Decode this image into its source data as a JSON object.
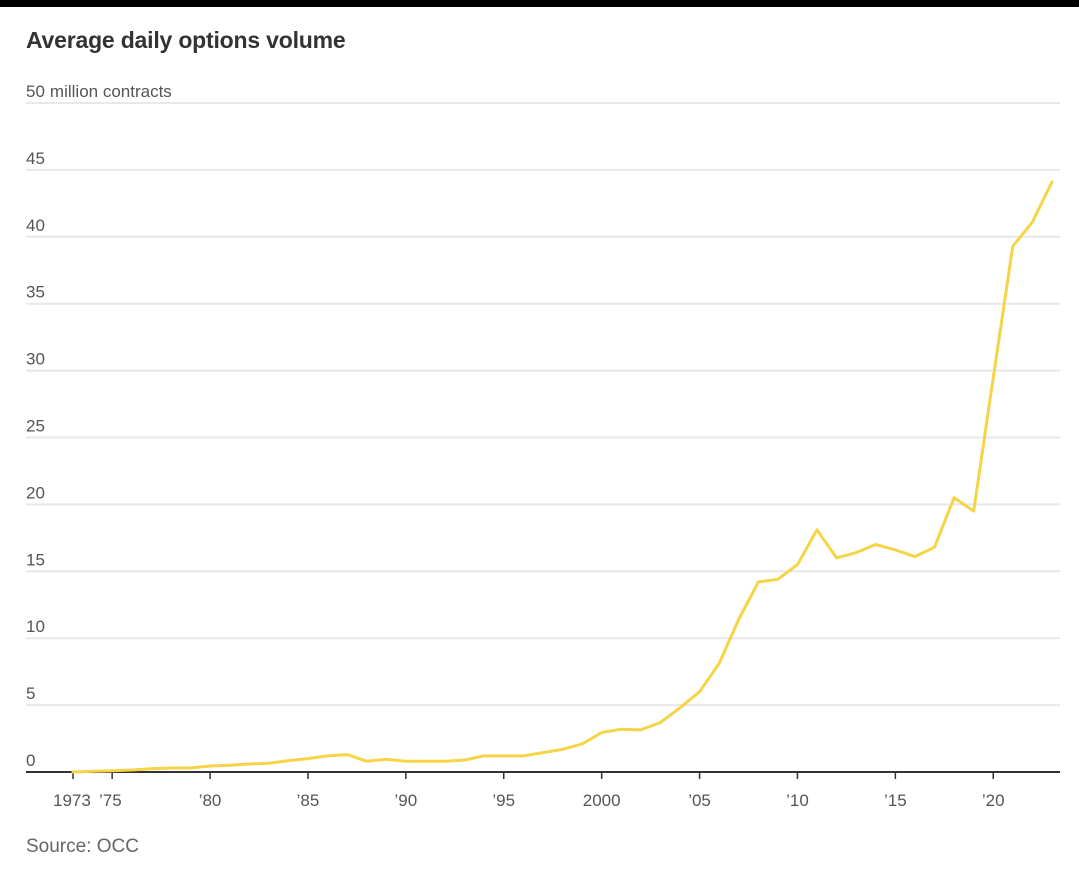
{
  "chart_data": {
    "type": "line",
    "title": "Average daily options volume",
    "y_unit_label": "million contracts",
    "source": "Source: OCC",
    "xlim": [
      1973,
      2023
    ],
    "ylim": [
      0,
      50
    ],
    "grid": true,
    "y_ticks": [
      {
        "value": 0,
        "label": "0"
      },
      {
        "value": 5,
        "label": "5"
      },
      {
        "value": 10,
        "label": "10"
      },
      {
        "value": 15,
        "label": "15"
      },
      {
        "value": 20,
        "label": "20"
      },
      {
        "value": 25,
        "label": "25"
      },
      {
        "value": 30,
        "label": "30"
      },
      {
        "value": 35,
        "label": "35"
      },
      {
        "value": 40,
        "label": "40"
      },
      {
        "value": 45,
        "label": "45"
      },
      {
        "value": 50,
        "label": "50"
      }
    ],
    "x_ticks": [
      {
        "value": 1973,
        "label": "1973"
      },
      {
        "value": 1975,
        "label": "’75"
      },
      {
        "value": 1980,
        "label": "’80"
      },
      {
        "value": 1985,
        "label": "’85"
      },
      {
        "value": 1990,
        "label": "’90"
      },
      {
        "value": 1995,
        "label": "’95"
      },
      {
        "value": 2000,
        "label": "2000"
      },
      {
        "value": 2005,
        "label": "’05"
      },
      {
        "value": 2010,
        "label": "’10"
      },
      {
        "value": 2015,
        "label": "’15"
      },
      {
        "value": 2020,
        "label": "’20"
      }
    ],
    "series": [
      {
        "name": "Average daily options volume",
        "color": "#f5d547",
        "x": [
          1973,
          1974,
          1975,
          1976,
          1977,
          1978,
          1979,
          1980,
          1981,
          1982,
          1983,
          1984,
          1985,
          1986,
          1987,
          1988,
          1989,
          1990,
          1991,
          1992,
          1993,
          1994,
          1995,
          1996,
          1997,
          1998,
          1999,
          2000,
          2001,
          2002,
          2003,
          2004,
          2005,
          2006,
          2007,
          2008,
          2009,
          2010,
          2011,
          2012,
          2013,
          2014,
          2015,
          2016,
          2017,
          2018,
          2019,
          2020,
          2021,
          2022,
          2023
        ],
        "values": [
          0.0,
          0.05,
          0.1,
          0.15,
          0.25,
          0.3,
          0.3,
          0.45,
          0.5,
          0.6,
          0.65,
          0.85,
          1.0,
          1.2,
          1.3,
          0.8,
          0.95,
          0.8,
          0.8,
          0.8,
          0.9,
          1.2,
          1.2,
          1.2,
          1.45,
          1.7,
          2.1,
          2.95,
          3.2,
          3.15,
          3.7,
          4.8,
          6.0,
          8.1,
          11.4,
          14.2,
          14.4,
          15.5,
          18.1,
          16.0,
          16.4,
          17.0,
          16.6,
          16.1,
          16.8,
          20.5,
          19.5,
          29.5,
          39.3,
          41.1,
          44.1
        ]
      }
    ]
  }
}
